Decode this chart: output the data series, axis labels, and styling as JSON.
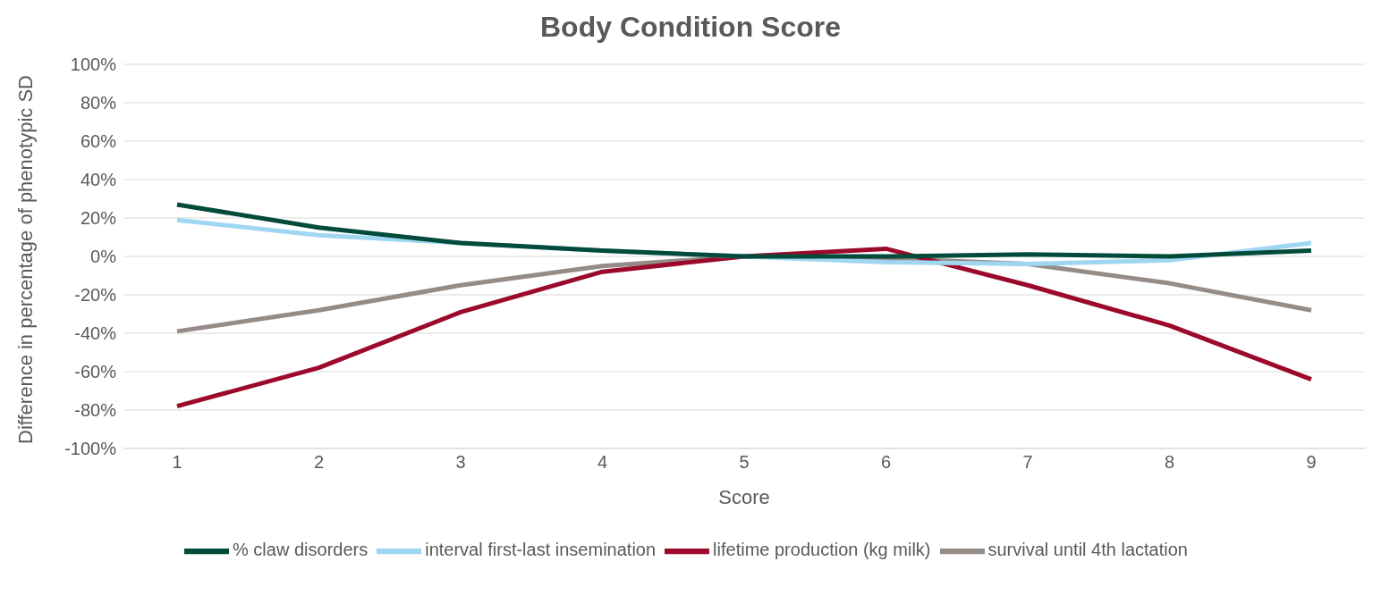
{
  "chart_data": {
    "type": "line",
    "title": "Body Condition Score",
    "xlabel": "Score",
    "ylabel": "Difference in percentage of phenotypic SD",
    "categories": [
      "1",
      "2",
      "3",
      "4",
      "5",
      "6",
      "7",
      "8",
      "9"
    ],
    "series": [
      {
        "name": "survival until 4th lactation",
        "color": "#958b87",
        "values": [
          -39,
          -28,
          -15,
          -5,
          0,
          -1,
          -4,
          -14,
          -28
        ]
      },
      {
        "name": "lifetime production (kg milk)",
        "color": "#9b0a2b",
        "values": [
          -78,
          -58,
          -29,
          -8,
          0,
          4,
          -15,
          -36,
          -64
        ]
      },
      {
        "name": "interval first-last insemination",
        "color": "#9fd6f2",
        "values": [
          19,
          11,
          7,
          3,
          0,
          -3,
          -4,
          -2,
          7
        ]
      },
      {
        "name": "% claw disorders",
        "color": "#024b3b",
        "values": [
          27,
          15,
          7,
          3,
          0,
          0,
          1,
          0,
          3
        ]
      }
    ],
    "ylim": [
      -100,
      100
    ],
    "yticks": [
      {
        "value": -100,
        "label": "-100%"
      },
      {
        "value": -80,
        "label": "-80%"
      },
      {
        "value": -60,
        "label": "-60%"
      },
      {
        "value": -40,
        "label": "-40%"
      },
      {
        "value": -20,
        "label": "-20%"
      },
      {
        "value": 0,
        "label": "0%"
      },
      {
        "value": 20,
        "label": "20%"
      },
      {
        "value": 40,
        "label": "40%"
      },
      {
        "value": 60,
        "label": "60%"
      },
      {
        "value": 80,
        "label": "80%"
      },
      {
        "value": 100,
        "label": "100%"
      }
    ],
    "grid": "y",
    "legend": "bottom",
    "marker": "none",
    "line_style": "solid"
  }
}
